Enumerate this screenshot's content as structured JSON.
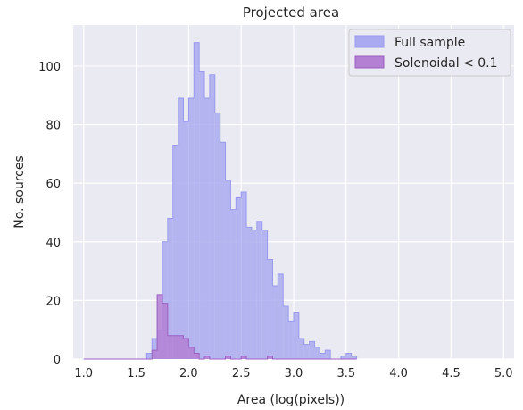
{
  "chart_data": {
    "type": "histogram",
    "title": "Projected area",
    "xlabel": "Area (log(pixels))",
    "ylabel": "No. sources",
    "xlim": [
      0.9,
      5.1
    ],
    "ylim": [
      0,
      114
    ],
    "xticks": [
      1.0,
      1.5,
      2.0,
      2.5,
      3.0,
      3.5,
      4.0,
      4.5,
      5.0
    ],
    "xtick_labels": [
      "1.0",
      "1.5",
      "2.0",
      "2.5",
      "3.0",
      "3.5",
      "4.0",
      "4.5",
      "5.0"
    ],
    "yticks": [
      0,
      20,
      40,
      60,
      80,
      100
    ],
    "ytick_labels": [
      "0",
      "20",
      "40",
      "60",
      "80",
      "100"
    ],
    "grid": true,
    "legend_position": "top-right",
    "bin_start": 1.0,
    "bin_width": 0.05,
    "series": [
      {
        "name": "Full sample",
        "color": "#aaaaf0",
        "edge_color": "#9a9aee",
        "values": [
          0,
          0,
          0,
          0,
          0,
          0,
          0,
          0,
          0,
          0,
          0,
          0,
          2,
          7,
          10,
          40,
          48,
          73,
          89,
          81,
          89,
          108,
          98,
          89,
          97,
          84,
          74,
          61,
          51,
          55,
          57,
          45,
          44,
          47,
          44,
          34,
          25,
          29,
          18,
          13,
          16,
          7,
          5,
          6,
          4,
          2,
          3,
          0,
          0,
          1,
          2,
          1
        ]
      },
      {
        "name": "Solenoidal < 0.1",
        "color": "#b380d4",
        "edge_color": "#9a5fc0",
        "values": [
          0,
          0,
          0,
          0,
          0,
          0,
          0,
          0,
          0,
          0,
          0,
          0,
          0,
          3,
          22,
          19,
          8,
          8,
          8,
          7,
          4,
          2,
          0,
          1,
          0,
          0,
          0,
          1,
          0,
          0,
          1,
          0,
          0,
          0,
          0,
          1,
          0,
          0,
          0,
          0,
          0,
          0,
          0,
          0,
          0,
          0,
          0,
          0,
          0,
          0,
          0,
          0
        ]
      }
    ]
  }
}
